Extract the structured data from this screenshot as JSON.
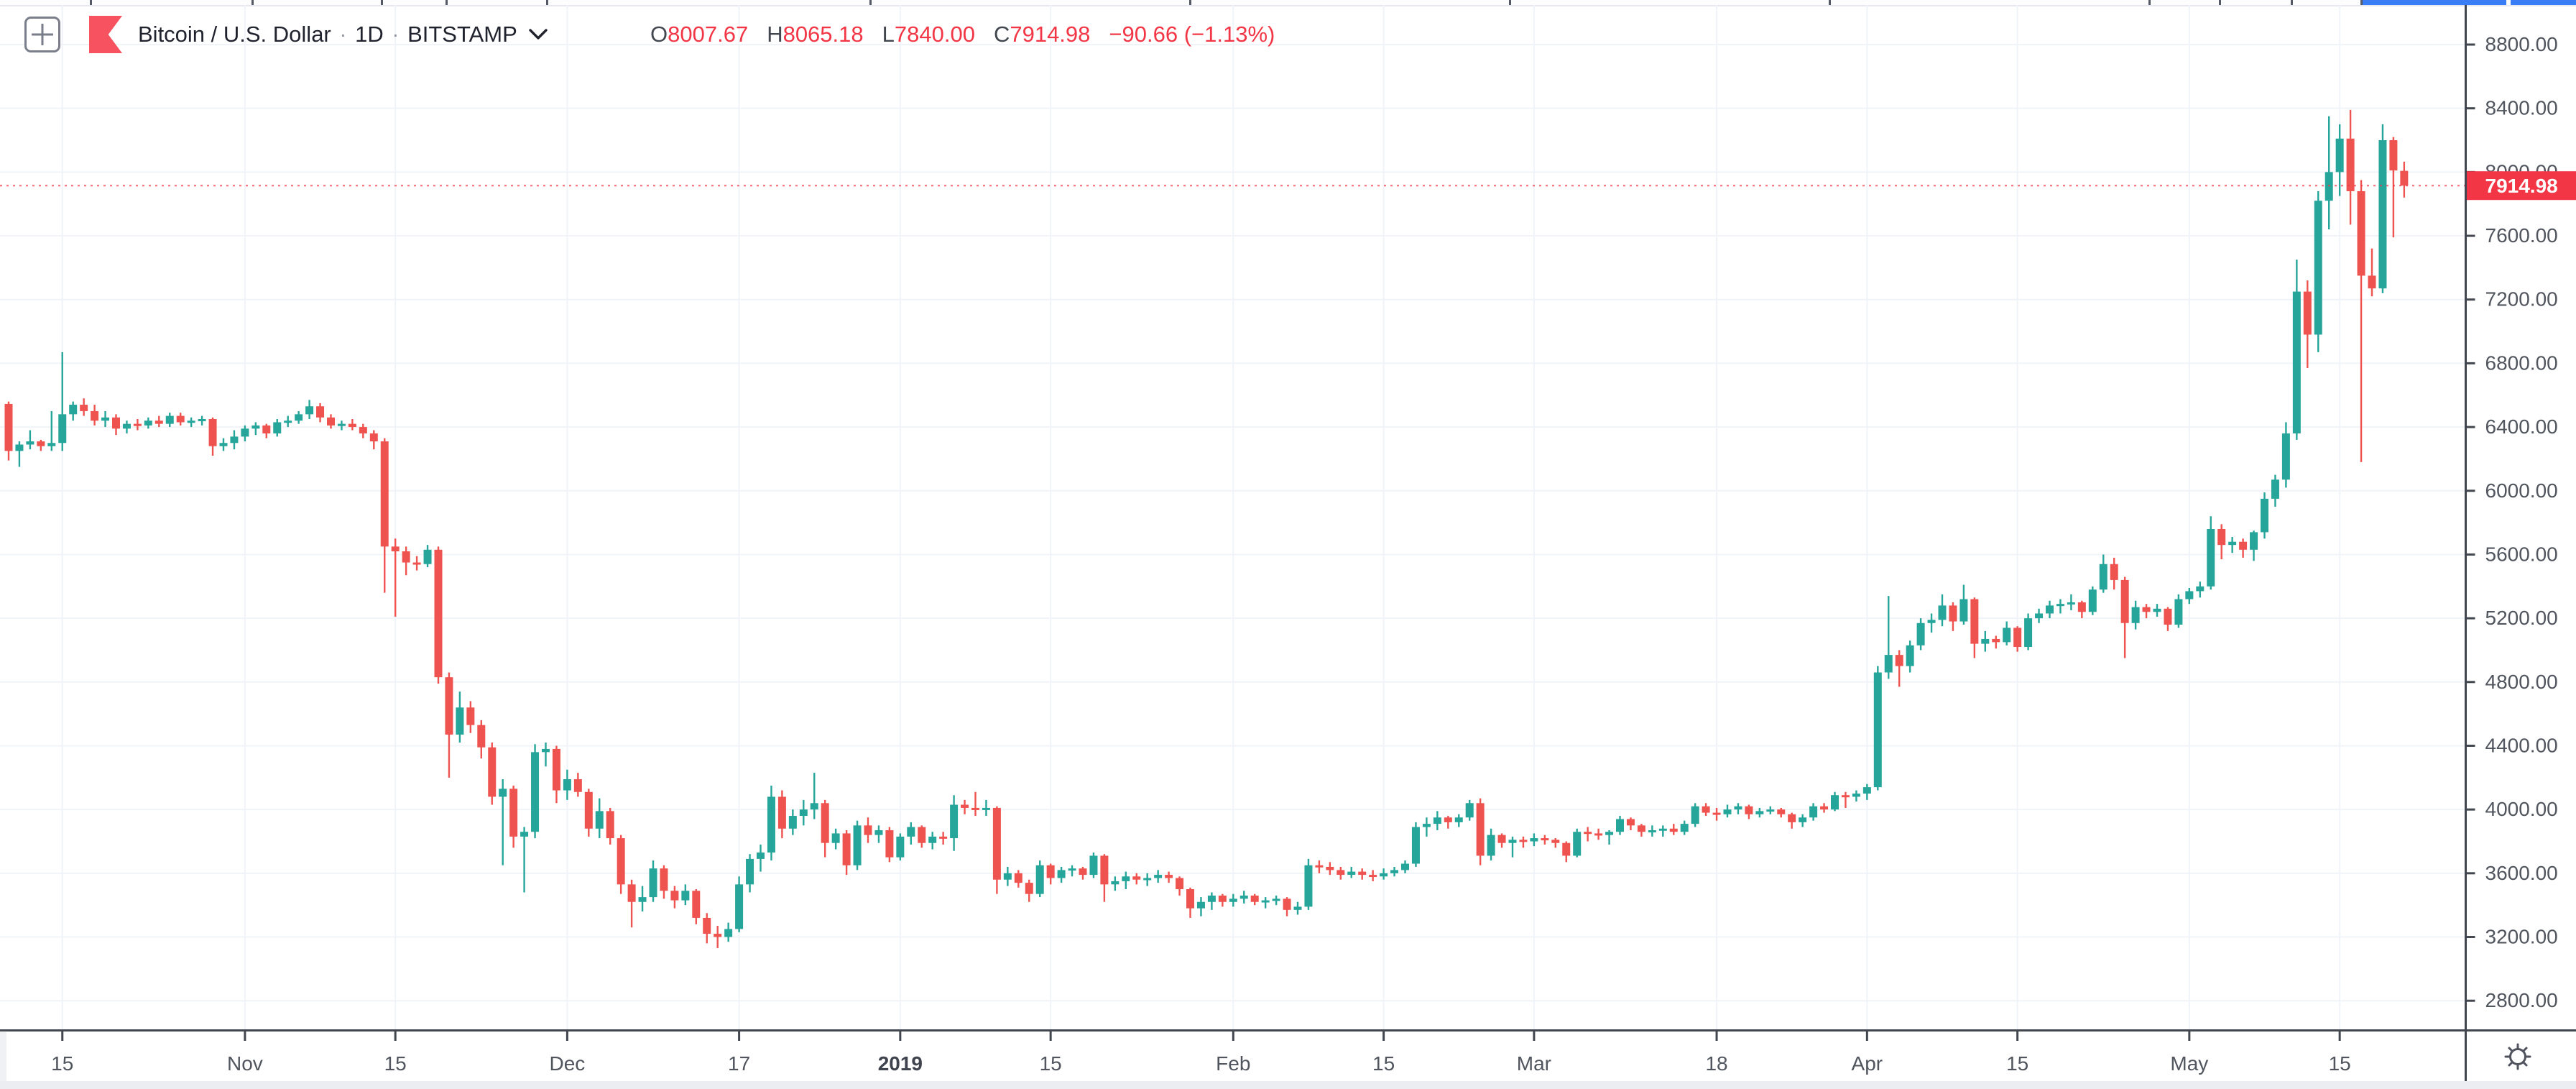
{
  "header": {
    "symbol_title": "Bitcoin / U.S. Dollar",
    "separator": "·",
    "interval": "1D",
    "exchange": "BITSTAMP",
    "ohlc": {
      "open_label": "O",
      "open": "8007.67",
      "high_label": "H",
      "high": "8065.18",
      "low_label": "L",
      "low": "7840.00",
      "close_label": "C",
      "close": "7914.98",
      "change": "−90.66 (−1.13%)"
    }
  },
  "price_axis": {
    "labels": [
      "8800.00",
      "8400.00",
      "8000.00",
      "7600.00",
      "7200.00",
      "6800.00",
      "6400.00",
      "6000.00",
      "5600.00",
      "5200.00",
      "4800.00",
      "4400.00",
      "4000.00",
      "3600.00",
      "3200.00",
      "2800.00"
    ],
    "last_price": "7914.98"
  },
  "time_axis": {
    "ticks": [
      {
        "label": "15",
        "index": 5,
        "bold": false
      },
      {
        "label": "Nov",
        "index": 22,
        "bold": false
      },
      {
        "label": "15",
        "index": 36,
        "bold": false
      },
      {
        "label": "Dec",
        "index": 52,
        "bold": false
      },
      {
        "label": "17",
        "index": 68,
        "bold": false
      },
      {
        "label": "2019",
        "index": 83,
        "bold": true
      },
      {
        "label": "15",
        "index": 97,
        "bold": false
      },
      {
        "label": "Feb",
        "index": 114,
        "bold": false
      },
      {
        "label": "15",
        "index": 128,
        "bold": false
      },
      {
        "label": "Mar",
        "index": 142,
        "bold": false
      },
      {
        "label": "18",
        "index": 159,
        "bold": false
      },
      {
        "label": "Apr",
        "index": 173,
        "bold": false
      },
      {
        "label": "15",
        "index": 187,
        "bold": false
      },
      {
        "label": "May",
        "index": 203,
        "bold": false
      },
      {
        "label": "15",
        "index": 217,
        "bold": false
      }
    ]
  },
  "chart_data": {
    "type": "candlestick",
    "title": "Bitcoin / U.S. Dollar",
    "exchange": "BITSTAMP",
    "interval": "1D",
    "first_date": "2018-10-10",
    "last_date": "2019-05-21",
    "ylim": [
      2620,
      9050
    ],
    "y_tick_step": 400,
    "grid": true,
    "last_close": 7914.98,
    "colors": {
      "up": "#26a69a",
      "down": "#ef5350",
      "last_price_label": "#f23645",
      "grid": "#f0f4f9",
      "axis_line": "#42464e",
      "axis_text": "#50555e",
      "header_text": "#23262f",
      "value_red": "#f23645",
      "logo_red": "#f7525f",
      "top_strip_blue": "#3b7df5"
    },
    "candles": [
      [
        6545,
        6560,
        6190,
        6250
      ],
      [
        6250,
        6310,
        6150,
        6290
      ],
      [
        6290,
        6380,
        6260,
        6310
      ],
      [
        6310,
        6320,
        6250,
        6280
      ],
      [
        6280,
        6500,
        6250,
        6300
      ],
      [
        6300,
        6870,
        6250,
        6480
      ],
      [
        6480,
        6560,
        6440,
        6540
      ],
      [
        6540,
        6580,
        6470,
        6500
      ],
      [
        6500,
        6540,
        6410,
        6440
      ],
      [
        6440,
        6500,
        6400,
        6460
      ],
      [
        6460,
        6480,
        6350,
        6390
      ],
      [
        6390,
        6440,
        6360,
        6420
      ],
      [
        6420,
        6450,
        6380,
        6410
      ],
      [
        6410,
        6460,
        6390,
        6440
      ],
      [
        6440,
        6470,
        6400,
        6420
      ],
      [
        6420,
        6490,
        6400,
        6470
      ],
      [
        6470,
        6490,
        6410,
        6430
      ],
      [
        6430,
        6460,
        6400,
        6440
      ],
      [
        6440,
        6470,
        6410,
        6450
      ],
      [
        6450,
        6460,
        6220,
        6280
      ],
      [
        6280,
        6330,
        6250,
        6300
      ],
      [
        6300,
        6380,
        6260,
        6340
      ],
      [
        6340,
        6410,
        6310,
        6390
      ],
      [
        6390,
        6430,
        6350,
        6410
      ],
      [
        6410,
        6420,
        6330,
        6360
      ],
      [
        6360,
        6450,
        6340,
        6430
      ],
      [
        6430,
        6470,
        6400,
        6440
      ],
      [
        6440,
        6500,
        6420,
        6480
      ],
      [
        6480,
        6570,
        6450,
        6530
      ],
      [
        6530,
        6550,
        6430,
        6460
      ],
      [
        6460,
        6480,
        6390,
        6410
      ],
      [
        6410,
        6440,
        6380,
        6420
      ],
      [
        6420,
        6450,
        6380,
        6400
      ],
      [
        6400,
        6420,
        6330,
        6360
      ],
      [
        6360,
        6380,
        6260,
        6310
      ],
      [
        6310,
        6330,
        5360,
        5650
      ],
      [
        5650,
        5700,
        5210,
        5620
      ],
      [
        5620,
        5650,
        5470,
        5550
      ],
      [
        5550,
        5590,
        5500,
        5540
      ],
      [
        5540,
        5660,
        5520,
        5630
      ],
      [
        5630,
        5650,
        4790,
        4830
      ],
      [
        4830,
        4860,
        4200,
        4470
      ],
      [
        4470,
        4740,
        4420,
        4640
      ],
      [
        4640,
        4680,
        4480,
        4530
      ],
      [
        4530,
        4560,
        4320,
        4390
      ],
      [
        4390,
        4420,
        4030,
        4080
      ],
      [
        4080,
        4190,
        3650,
        4130
      ],
      [
        4130,
        4150,
        3760,
        3830
      ],
      [
        3830,
        3890,
        3480,
        3860
      ],
      [
        3860,
        4410,
        3820,
        4360
      ],
      [
        4360,
        4420,
        4270,
        4380
      ],
      [
        4380,
        4400,
        4040,
        4120
      ],
      [
        4120,
        4250,
        4060,
        4190
      ],
      [
        4190,
        4230,
        4080,
        4110
      ],
      [
        4110,
        4130,
        3830,
        3880
      ],
      [
        3880,
        4070,
        3820,
        3990
      ],
      [
        3990,
        4010,
        3780,
        3820
      ],
      [
        3820,
        3840,
        3470,
        3530
      ],
      [
        3530,
        3560,
        3260,
        3420
      ],
      [
        3420,
        3520,
        3360,
        3450
      ],
      [
        3450,
        3680,
        3420,
        3630
      ],
      [
        3630,
        3650,
        3440,
        3490
      ],
      [
        3490,
        3520,
        3380,
        3430
      ],
      [
        3430,
        3530,
        3400,
        3490
      ],
      [
        3490,
        3500,
        3280,
        3320
      ],
      [
        3320,
        3350,
        3160,
        3220
      ],
      [
        3220,
        3270,
        3130,
        3200
      ],
      [
        3200,
        3290,
        3170,
        3250
      ],
      [
        3250,
        3580,
        3230,
        3530
      ],
      [
        3530,
        3720,
        3480,
        3690
      ],
      [
        3690,
        3780,
        3610,
        3730
      ],
      [
        3730,
        4150,
        3680,
        4080
      ],
      [
        4080,
        4120,
        3820,
        3880
      ],
      [
        3880,
        4000,
        3840,
        3960
      ],
      [
        3960,
        4060,
        3900,
        4000
      ],
      [
        4000,
        4230,
        3940,
        4040
      ],
      [
        4040,
        4060,
        3700,
        3790
      ],
      [
        3790,
        3880,
        3750,
        3850
      ],
      [
        3850,
        3870,
        3590,
        3650
      ],
      [
        3650,
        3930,
        3620,
        3900
      ],
      [
        3900,
        3950,
        3790,
        3840
      ],
      [
        3840,
        3900,
        3790,
        3870
      ],
      [
        3870,
        3890,
        3670,
        3700
      ],
      [
        3700,
        3850,
        3680,
        3830
      ],
      [
        3830,
        3920,
        3780,
        3890
      ],
      [
        3890,
        3900,
        3760,
        3790
      ],
      [
        3790,
        3860,
        3750,
        3830
      ],
      [
        3830,
        3860,
        3780,
        3820
      ],
      [
        3820,
        4090,
        3740,
        4030
      ],
      [
        4030,
        4060,
        3970,
        4010
      ],
      [
        4010,
        4110,
        3960,
        4000
      ],
      [
        4000,
        4060,
        3960,
        4010
      ],
      [
        4010,
        4020,
        3470,
        3560
      ],
      [
        3560,
        3640,
        3520,
        3600
      ],
      [
        3600,
        3620,
        3510,
        3540
      ],
      [
        3540,
        3560,
        3420,
        3470
      ],
      [
        3470,
        3680,
        3450,
        3650
      ],
      [
        3650,
        3660,
        3530,
        3570
      ],
      [
        3570,
        3640,
        3540,
        3620
      ],
      [
        3620,
        3650,
        3580,
        3630
      ],
      [
        3630,
        3640,
        3560,
        3590
      ],
      [
        3590,
        3730,
        3570,
        3710
      ],
      [
        3710,
        3720,
        3420,
        3530
      ],
      [
        3530,
        3580,
        3490,
        3550
      ],
      [
        3550,
        3610,
        3500,
        3580
      ],
      [
        3580,
        3600,
        3530,
        3560
      ],
      [
        3560,
        3600,
        3520,
        3570
      ],
      [
        3570,
        3620,
        3540,
        3590
      ],
      [
        3590,
        3610,
        3540,
        3570
      ],
      [
        3570,
        3580,
        3460,
        3500
      ],
      [
        3500,
        3510,
        3320,
        3380
      ],
      [
        3380,
        3450,
        3330,
        3420
      ],
      [
        3420,
        3480,
        3370,
        3460
      ],
      [
        3460,
        3470,
        3390,
        3420
      ],
      [
        3420,
        3470,
        3390,
        3440
      ],
      [
        3440,
        3490,
        3410,
        3460
      ],
      [
        3460,
        3470,
        3400,
        3420
      ],
      [
        3420,
        3450,
        3380,
        3430
      ],
      [
        3430,
        3460,
        3400,
        3440
      ],
      [
        3440,
        3450,
        3330,
        3370
      ],
      [
        3370,
        3420,
        3340,
        3390
      ],
      [
        3390,
        3690,
        3370,
        3650
      ],
      [
        3650,
        3680,
        3600,
        3640
      ],
      [
        3640,
        3670,
        3590,
        3620
      ],
      [
        3620,
        3640,
        3560,
        3590
      ],
      [
        3590,
        3640,
        3570,
        3610
      ],
      [
        3610,
        3630,
        3560,
        3590
      ],
      [
        3590,
        3620,
        3550,
        3580
      ],
      [
        3580,
        3630,
        3560,
        3600
      ],
      [
        3600,
        3640,
        3580,
        3620
      ],
      [
        3620,
        3680,
        3600,
        3660
      ],
      [
        3660,
        3920,
        3640,
        3890
      ],
      [
        3890,
        3950,
        3830,
        3910
      ],
      [
        3910,
        3990,
        3870,
        3950
      ],
      [
        3950,
        3960,
        3880,
        3920
      ],
      [
        3920,
        3970,
        3890,
        3950
      ],
      [
        3950,
        4060,
        3930,
        4040
      ],
      [
        4040,
        4070,
        3650,
        3710
      ],
      [
        3710,
        3880,
        3680,
        3840
      ],
      [
        3840,
        3850,
        3760,
        3790
      ],
      [
        3790,
        3830,
        3700,
        3810
      ],
      [
        3810,
        3830,
        3760,
        3800
      ],
      [
        3800,
        3850,
        3770,
        3820
      ],
      [
        3820,
        3840,
        3780,
        3810
      ],
      [
        3810,
        3820,
        3760,
        3790
      ],
      [
        3790,
        3800,
        3670,
        3710
      ],
      [
        3710,
        3880,
        3700,
        3860
      ],
      [
        3860,
        3890,
        3800,
        3850
      ],
      [
        3850,
        3880,
        3810,
        3840
      ],
      [
        3840,
        3870,
        3780,
        3860
      ],
      [
        3860,
        3960,
        3840,
        3940
      ],
      [
        3940,
        3950,
        3870,
        3900
      ],
      [
        3900,
        3910,
        3830,
        3860
      ],
      [
        3860,
        3900,
        3830,
        3870
      ],
      [
        3870,
        3900,
        3830,
        3880
      ],
      [
        3880,
        3910,
        3840,
        3860
      ],
      [
        3860,
        3930,
        3840,
        3910
      ],
      [
        3910,
        4040,
        3890,
        4020
      ],
      [
        4020,
        4040,
        3960,
        3980
      ],
      [
        3980,
        4010,
        3930,
        3970
      ],
      [
        3970,
        4030,
        3950,
        4000
      ],
      [
        4000,
        4040,
        3970,
        4020
      ],
      [
        4020,
        4030,
        3940,
        3970
      ],
      [
        3970,
        4010,
        3950,
        3990
      ],
      [
        3990,
        4020,
        3970,
        4000
      ],
      [
        4000,
        4010,
        3950,
        3970
      ],
      [
        3970,
        3980,
        3880,
        3920
      ],
      [
        3920,
        3970,
        3890,
        3950
      ],
      [
        3950,
        4040,
        3930,
        4020
      ],
      [
        4020,
        4040,
        3980,
        4000
      ],
      [
        4000,
        4110,
        3990,
        4090
      ],
      [
        4090,
        4110,
        4010,
        4080
      ],
      [
        4080,
        4120,
        4050,
        4100
      ],
      [
        4100,
        4160,
        4060,
        4140
      ],
      [
        4140,
        4900,
        4120,
        4860
      ],
      [
        4860,
        5340,
        4820,
        4970
      ],
      [
        4970,
        5000,
        4770,
        4900
      ],
      [
        4900,
        5060,
        4860,
        5030
      ],
      [
        5030,
        5200,
        5000,
        5170
      ],
      [
        5170,
        5230,
        5110,
        5190
      ],
      [
        5190,
        5350,
        5150,
        5280
      ],
      [
        5280,
        5300,
        5120,
        5180
      ],
      [
        5180,
        5410,
        5160,
        5320
      ],
      [
        5320,
        5330,
        4950,
        5040
      ],
      [
        5040,
        5120,
        4990,
        5070
      ],
      [
        5070,
        5090,
        5010,
        5050
      ],
      [
        5050,
        5180,
        5030,
        5140
      ],
      [
        5140,
        5150,
        4990,
        5020
      ],
      [
        5020,
        5230,
        5000,
        5200
      ],
      [
        5200,
        5260,
        5170,
        5230
      ],
      [
        5230,
        5310,
        5200,
        5280
      ],
      [
        5280,
        5320,
        5230,
        5290
      ],
      [
        5290,
        5350,
        5250,
        5300
      ],
      [
        5300,
        5310,
        5200,
        5240
      ],
      [
        5240,
        5400,
        5220,
        5380
      ],
      [
        5380,
        5600,
        5360,
        5540
      ],
      [
        5540,
        5580,
        5380,
        5440
      ],
      [
        5440,
        5460,
        4950,
        5170
      ],
      [
        5170,
        5310,
        5130,
        5270
      ],
      [
        5270,
        5290,
        5200,
        5240
      ],
      [
        5240,
        5290,
        5210,
        5260
      ],
      [
        5260,
        5270,
        5120,
        5160
      ],
      [
        5160,
        5350,
        5140,
        5320
      ],
      [
        5320,
        5390,
        5290,
        5370
      ],
      [
        5370,
        5430,
        5330,
        5400
      ],
      [
        5400,
        5840,
        5380,
        5760
      ],
      [
        5760,
        5790,
        5570,
        5660
      ],
      [
        5660,
        5710,
        5610,
        5680
      ],
      [
        5680,
        5700,
        5580,
        5630
      ],
      [
        5630,
        5750,
        5560,
        5740
      ],
      [
        5740,
        5990,
        5700,
        5950
      ],
      [
        5950,
        6100,
        5900,
        6070
      ],
      [
        6070,
        6430,
        6020,
        6360
      ],
      [
        6360,
        7450,
        6320,
        7250
      ],
      [
        7250,
        7320,
        6770,
        6980
      ],
      [
        6980,
        7880,
        6870,
        7820
      ],
      [
        7820,
        8350,
        7640,
        8000
      ],
      [
        8000,
        8300,
        7850,
        8210
      ],
      [
        8210,
        8390,
        7670,
        7880
      ],
      [
        7880,
        7950,
        6180,
        7350
      ],
      [
        7350,
        7520,
        7220,
        7270
      ],
      [
        7270,
        8300,
        7240,
        8200
      ],
      [
        8200,
        8220,
        7590,
        8010
      ],
      [
        8007.67,
        8065.18,
        7840,
        7914.98
      ]
    ]
  }
}
